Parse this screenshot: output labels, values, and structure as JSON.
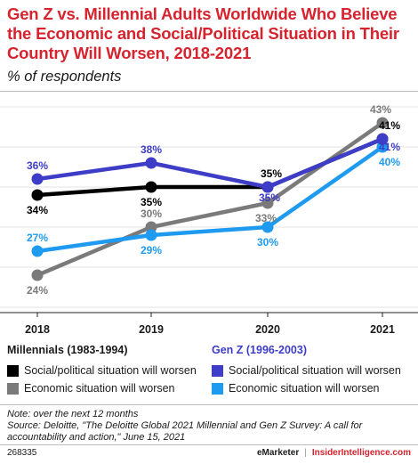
{
  "title": "Gen Z vs. Millennial Adults Worldwide Who Believe the Economic and Social/Political Situation in Their Country Will Worsen, 2018-2021",
  "subtitle": "% of respondents",
  "chart_data": {
    "type": "line",
    "x": [
      "2018",
      "2019",
      "2020",
      "2021"
    ],
    "ylim": [
      20,
      45
    ],
    "grid": "horizontal",
    "legend_position": "bottom",
    "groups": [
      {
        "label": "Millennials (1983-1994)",
        "color": "#1a1a1a"
      },
      {
        "label": "Gen Z (1996-2003)",
        "color": "#3d3dc7"
      }
    ],
    "series": [
      {
        "name": "Social/political situation will worsen",
        "group": "Millennials (1983-1994)",
        "color": "#000000",
        "values": [
          34,
          35,
          35,
          41
        ],
        "labels": [
          "34%",
          "35%",
          "35%",
          "41%"
        ]
      },
      {
        "name": "Economic situation will worsen",
        "group": "Millennials (1983-1994)",
        "color": "#7a7a7a",
        "values": [
          24,
          30,
          33,
          43
        ],
        "labels": [
          "24%",
          "30%",
          "33%",
          "43%"
        ]
      },
      {
        "name": "Social/political situation will worsen",
        "group": "Gen Z (1996-2003)",
        "color": "#3d3dc7",
        "values": [
          36,
          38,
          35,
          41
        ],
        "labels": [
          "36%",
          "38%",
          "35%",
          "41%"
        ]
      },
      {
        "name": "Economic situation will worsen",
        "group": "Gen Z (1996-2003)",
        "color": "#1e9bf0",
        "values": [
          27,
          29,
          30,
          40
        ],
        "labels": [
          "27%",
          "29%",
          "30%",
          "40%"
        ]
      }
    ]
  },
  "notes": {
    "note": "Note: over the next 12 months",
    "source": "Source: Deloitte, \"The Deloitte Global 2021 Millennial and Gen Z Survey: A call for accountability and action,\" June 15, 2021"
  },
  "footer": {
    "id": "268335",
    "brand": "eMarketer",
    "separator": "|",
    "site": "InsiderIntelligence.com"
  }
}
